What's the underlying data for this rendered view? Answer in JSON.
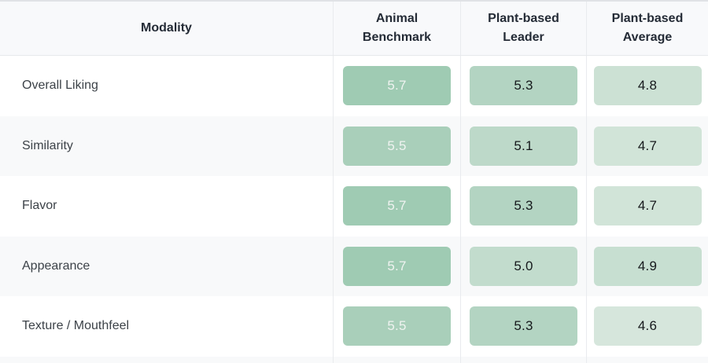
{
  "table": {
    "row_header": "Modality",
    "columns": [
      {
        "label": "Animal Benchmark"
      },
      {
        "label": "Plant-based Leader"
      },
      {
        "label": "Plant-based Average"
      }
    ],
    "rows": [
      {
        "label": "Overall Liking",
        "cells": [
          {
            "value": "5.7",
            "bg": "#9fcbb3",
            "fg": "#eff3f0"
          },
          {
            "value": "5.3",
            "bg": "#b3d4c2",
            "fg": "#16191c"
          },
          {
            "value": "4.8",
            "bg": "#cce1d4",
            "fg": "#16191c"
          }
        ]
      },
      {
        "label": "Similarity",
        "cells": [
          {
            "value": "5.5",
            "bg": "#a9cfba",
            "fg": "#eff3f0"
          },
          {
            "value": "5.1",
            "bg": "#bdd9c9",
            "fg": "#16191c"
          },
          {
            "value": "4.7",
            "bg": "#d1e4d8",
            "fg": "#16191c"
          }
        ]
      },
      {
        "label": "Flavor",
        "cells": [
          {
            "value": "5.7",
            "bg": "#9fcbb3",
            "fg": "#eff3f0"
          },
          {
            "value": "5.3",
            "bg": "#b3d4c2",
            "fg": "#16191c"
          },
          {
            "value": "4.7",
            "bg": "#d1e4d8",
            "fg": "#16191c"
          }
        ]
      },
      {
        "label": "Appearance",
        "cells": [
          {
            "value": "5.7",
            "bg": "#9fcbb3",
            "fg": "#eff3f0"
          },
          {
            "value": "5.0",
            "bg": "#c2dccd",
            "fg": "#16191c"
          },
          {
            "value": "4.9",
            "bg": "#c7dfd1",
            "fg": "#16191c"
          }
        ]
      },
      {
        "label": "Texture / Mouthfeel",
        "cells": [
          {
            "value": "5.5",
            "bg": "#a9cfba",
            "fg": "#eff3f0"
          },
          {
            "value": "5.3",
            "bg": "#b3d4c2",
            "fg": "#16191c"
          },
          {
            "value": "4.6",
            "bg": "#d6e6dc",
            "fg": "#16191c"
          }
        ]
      }
    ]
  },
  "colors": {
    "header_bg": "#f8f9fb",
    "zebra_bg": "#f8f9fa",
    "divider": "#e9ebee",
    "header_text": "#242b36",
    "label_text": "#3c4248"
  },
  "chart_data": {
    "type": "heatmap",
    "title": "",
    "row_label_header": "Modality",
    "categories": [
      "Overall Liking",
      "Similarity",
      "Flavor",
      "Appearance",
      "Texture / Mouthfeel"
    ],
    "series": [
      {
        "name": "Animal Benchmark",
        "values": [
          5.7,
          5.5,
          5.7,
          5.7,
          5.5
        ]
      },
      {
        "name": "Plant-based Leader",
        "values": [
          5.3,
          5.1,
          5.3,
          5.0,
          5.3
        ]
      },
      {
        "name": "Plant-based Average",
        "values": [
          4.8,
          4.7,
          4.7,
          4.9,
          4.6
        ]
      }
    ],
    "value_color_scale": {
      "min": 4.6,
      "min_color": "#d6e6dc",
      "max": 5.7,
      "max_color": "#9fcbb3"
    },
    "legend_position": "none",
    "grid": "zebra-rows"
  }
}
